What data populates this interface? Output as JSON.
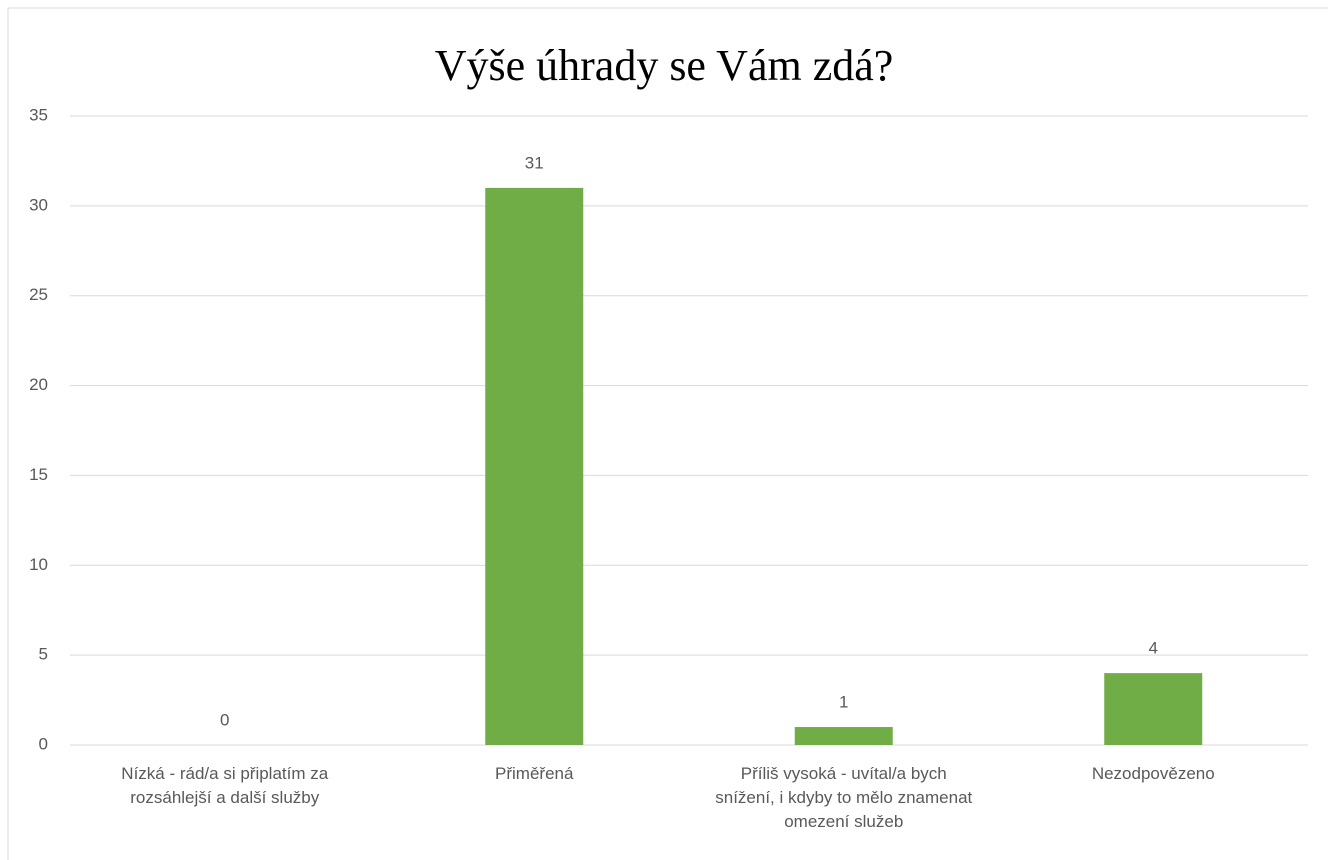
{
  "chart_data": {
    "type": "bar",
    "title": "Výše úhrady se Vám zdá?",
    "categories": [
      "Nízká - rád/a si připlatím za rozsáhlejší a další služby",
      "Přiměřená",
      "Příliš vysoká - uvítal/a bych snížení, i kdyby to mělo znamenat omezení služeb",
      "Nezodpovězeno"
    ],
    "values": [
      0,
      31,
      1,
      4
    ],
    "color": "#70ad47",
    "ylim": [
      0,
      35
    ],
    "yticks": [
      0,
      5,
      10,
      15,
      20,
      25,
      30,
      35
    ],
    "grid": true
  }
}
